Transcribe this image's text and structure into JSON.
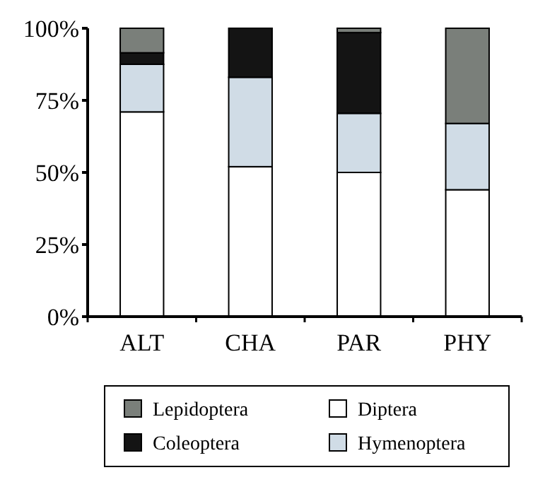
{
  "chart_data": {
    "type": "bar",
    "stacked": true,
    "categories": [
      "ALT",
      "CHA",
      "PAR",
      "PHY"
    ],
    "series": [
      {
        "name": "Diptera",
        "color": "#ffffff",
        "values": [
          71,
          52,
          50,
          44
        ]
      },
      {
        "name": "Hymenoptera",
        "color": "#d0dce6",
        "values": [
          16.5,
          31,
          20.5,
          23
        ]
      },
      {
        "name": "Coleoptera",
        "color": "#141414",
        "values": [
          4,
          17,
          28,
          0
        ]
      },
      {
        "name": "Lepidoptera",
        "color": "#7a7f7a",
        "values": [
          8.5,
          0,
          1.5,
          33
        ]
      }
    ],
    "ylim": [
      0,
      100
    ],
    "yticks": [
      {
        "value": 0,
        "label": "0%"
      },
      {
        "value": 25,
        "label": "25%"
      },
      {
        "value": 50,
        "label": "50%"
      },
      {
        "value": 75,
        "label": "75%"
      },
      {
        "value": 100,
        "label": "100%"
      }
    ],
    "grid": false,
    "legend": "bottom"
  }
}
